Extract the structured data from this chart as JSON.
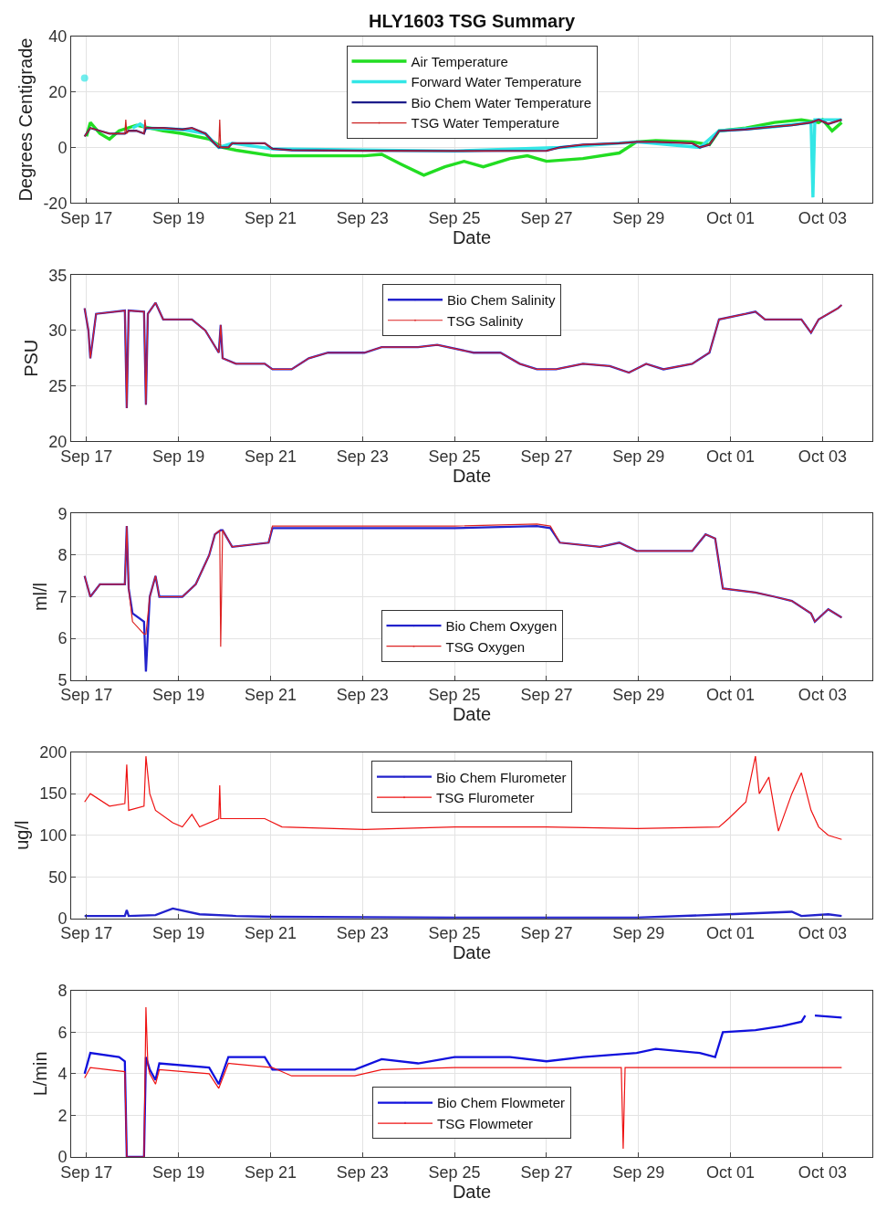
{
  "chart_data": [
    {
      "type": "line",
      "title": "HLY1603 TSG Summary",
      "xlabel": "Date",
      "ylabel": "Degrees Centigrade",
      "xlim": [
        "--09-16T16:00",
        "--10-04T02:00"
      ],
      "xticks": [
        {
          "value": "--09-17",
          "label": "Sep 17"
        },
        {
          "value": "--09-19",
          "label": "Sep 19"
        },
        {
          "value": "--09-21",
          "label": "Sep 21"
        },
        {
          "value": "--09-23",
          "label": "Sep 23"
        },
        {
          "value": "--09-25",
          "label": "Sep 25"
        },
        {
          "value": "--09-27",
          "label": "Sep 27"
        },
        {
          "value": "--09-29",
          "label": "Sep 29"
        },
        {
          "value": "--10-01",
          "label": "Oct 01"
        },
        {
          "value": "--10-03",
          "label": "Oct 03"
        }
      ],
      "ylim": [
        -20,
        40
      ],
      "yticks": [
        -20,
        0,
        20,
        40
      ],
      "grid": true,
      "legend": "top",
      "series": [
        {
          "name": "Air Temperature",
          "color": "#22dd22",
          "x": [
            "--09-17T00:00",
            "--09-17T02:00",
            "--09-17T07:00",
            "--09-17T12:00",
            "--09-17T17:00",
            "--09-18T02:00",
            "--09-18T16:00",
            "--09-19T02:00",
            "--09-19T16:00",
            "--09-19T23:00",
            "--09-20T06:00",
            "--09-21T01:00",
            "--09-22T06:00",
            "--09-23T01:00",
            "--09-23T10:00",
            "--09-23T20:00",
            "--09-24T08:00",
            "--09-24T19:00",
            "--09-25T05:00",
            "--09-25T15:00",
            "--09-26T05:00",
            "--09-26T14:00",
            "--09-27T00:00",
            "--09-27T19:00",
            "--09-28T14:00",
            "--09-28T23:00",
            "--09-29T09:00",
            "--09-30T04:00",
            "--09-30T13:00",
            "--09-30T18:00",
            "--10-01T08:00",
            "--10-01T23:00",
            "--10-02T13:00",
            "--10-02T22:00",
            "--10-03T00:00",
            "--10-03T05:00",
            "--10-03T10:00"
          ],
          "values": [
            4,
            9,
            5,
            3,
            6,
            8,
            6,
            5,
            3,
            0,
            -1,
            -3,
            -3,
            -3,
            -2.5,
            -6,
            -10,
            -7,
            -5,
            -7,
            -4,
            -3,
            -5,
            -4,
            -2,
            2,
            2.5,
            2,
            1,
            6,
            7,
            9,
            10,
            9,
            10,
            6,
            9
          ]
        },
        {
          "name": "Forward Water Temperature",
          "color": "#33e6e6",
          "x": [
            "--09-16T23:00",
            "--09-17T01:00",
            "--09-18T00:00",
            "--09-18T04:00",
            "--09-18T07:00",
            "--09-19T02:00",
            "--09-19T14:00",
            "--09-19T21:00",
            "--09-20T04:00",
            "--09-21T01:00",
            "--09-25T00:00",
            "--09-27T07:00",
            "--09-28T23:00",
            "--09-30T08:00",
            "--09-30T18:00",
            "--10-01T23:00",
            "--10-02T18:00",
            "--10-02T19:00",
            "--10-02T20:00",
            "--10-03T10:00"
          ],
          "values": [
            25,
            null,
            7,
            8.5,
            7,
            6.5,
            5,
            0,
            1.5,
            -0.5,
            -1.3,
            0,
            2,
            0,
            6,
            7.5,
            9,
            -18,
            10,
            10
          ]
        },
        {
          "name": "Bio Chem Water Temperature",
          "color": "#1c1c8a",
          "x": [
            "--09-16T23:00",
            "--09-17T02:00",
            "--09-17T07:00",
            "--09-17T12:00",
            "--09-17T20:00",
            "--09-17T22:00",
            "--09-18T02:00",
            "--09-18T06:00",
            "--09-18T07:00",
            "--09-18T16:00",
            "--09-19T02:00",
            "--09-19T07:00",
            "--09-19T14:00",
            "--09-19T18:00",
            "--09-19T21:00",
            "--09-20T02:00",
            "--09-20T04:00",
            "--09-20T21:00",
            "--09-21T01:00",
            "--09-21T11:00",
            "--09-23T01:00",
            "--09-25T00:00",
            "--09-27T00:00",
            "--09-27T07:00",
            "--09-27T19:00",
            "--09-28T14:00",
            "--09-28T23:00",
            "--09-29T09:00",
            "--09-30T04:00",
            "--09-30T08:00",
            "--09-30T13:00",
            "--09-30T18:00",
            "--10-01T08:00",
            "--10-01T23:00",
            "--10-02T08:00",
            "--10-02T18:00",
            "--10-02T22:00",
            "--10-03T03:00",
            "--10-03T10:00"
          ],
          "values": [
            4,
            7,
            6,
            5,
            5,
            6,
            6,
            5,
            7,
            7,
            6.5,
            7,
            5,
            2,
            0,
            0,
            1.5,
            1.5,
            -0.5,
            -1,
            -1.2,
            -1.3,
            -1.2,
            0,
            1,
            1.5,
            2,
            2,
            1.5,
            0,
            1,
            6,
            6.5,
            7.5,
            8,
            9,
            10,
            8.5,
            10
          ]
        },
        {
          "name": "TSG Water Temperature",
          "color": "#cc2222",
          "x": [
            "--09-16T23:00",
            "--09-17T02:00",
            "--09-17T07:00",
            "--09-17T12:00",
            "--09-17T20:00",
            "--09-17T20:30",
            "--09-17T21:00",
            "--09-17T22:00",
            "--09-18T02:00",
            "--09-18T06:00",
            "--09-18T06:30",
            "--09-18T07:00",
            "--09-18T16:00",
            "--09-19T02:00",
            "--09-19T07:00",
            "--09-19T14:00",
            "--09-19T18:00",
            "--09-19T21:00",
            "--09-19T21:30",
            "--09-19T22:00",
            "--09-20T02:00",
            "--09-20T04:00",
            "--09-20T21:00",
            "--09-21T01:00",
            "--09-21T11:00",
            "--09-23T01:00",
            "--09-25T00:00",
            "--09-27T00:00",
            "--09-27T07:00",
            "--09-27T19:00",
            "--09-28T14:00",
            "--09-28T23:00",
            "--09-29T09:00",
            "--09-30T04:00",
            "--09-30T08:00",
            "--09-30T13:00",
            "--09-30T18:00",
            "--10-01T08:00",
            "--10-01T23:00",
            "--10-02T08:00",
            "--10-02T18:00",
            "--10-02T22:00",
            "--10-03T03:00",
            "--10-03T10:00"
          ],
          "values": [
            4,
            7,
            6,
            5,
            5,
            10,
            5,
            6,
            6,
            5,
            10,
            7,
            7,
            6.5,
            7,
            5,
            2,
            0,
            10,
            0,
            0,
            1.5,
            1.5,
            -0.5,
            -1,
            -1.2,
            -1.3,
            -1.2,
            0,
            1,
            1.5,
            2,
            2,
            1.5,
            0,
            1,
            6,
            6.5,
            7.5,
            8,
            9,
            10,
            8.5,
            10
          ]
        }
      ]
    },
    {
      "type": "line",
      "xlabel": "Date",
      "ylabel": "PSU",
      "xlim": [
        "--09-16T16:00",
        "--10-04T02:00"
      ],
      "xticks": [
        {
          "value": "--09-17",
          "label": "Sep 17"
        },
        {
          "value": "--09-19",
          "label": "Sep 19"
        },
        {
          "value": "--09-21",
          "label": "Sep 21"
        },
        {
          "value": "--09-23",
          "label": "Sep 23"
        },
        {
          "value": "--09-25",
          "label": "Sep 25"
        },
        {
          "value": "--09-27",
          "label": "Sep 27"
        },
        {
          "value": "--09-29",
          "label": "Sep 29"
        },
        {
          "value": "--10-01",
          "label": "Oct 01"
        },
        {
          "value": "--10-03",
          "label": "Oct 03"
        }
      ],
      "ylim": [
        20,
        35
      ],
      "yticks": [
        20,
        25,
        30,
        35
      ],
      "grid": true,
      "legend": "top",
      "series": [
        {
          "name": "Bio Chem Salinity",
          "color": "#2222cc",
          "x": [
            "--09-16T23:00",
            "--09-17T01:00",
            "--09-17T02:00",
            "--09-17T05:00",
            "--09-17T20:00",
            "--09-17T21:00",
            "--09-17T22:00",
            "--09-18T06:00",
            "--09-18T07:00",
            "--09-18T08:00",
            "--09-18T12:00",
            "--09-18T16:00",
            "--09-19T07:00",
            "--09-19T14:00",
            "--09-19T21:00",
            "--09-19T22:00",
            "--09-19T23:00",
            "--09-20T06:00",
            "--09-20T21:00",
            "--09-21T01:00",
            "--09-21T11:00",
            "--09-21T20:00",
            "--09-22T06:00",
            "--09-23T01:00",
            "--09-23T10:00",
            "--09-24T05:00",
            "--09-24T15:00",
            "--09-25T10:00",
            "--09-26T00:00",
            "--09-26T10:00",
            "--09-26T19:00",
            "--09-27T05:00",
            "--09-27T19:00",
            "--09-28T09:00",
            "--09-28T19:00",
            "--09-29T04:00",
            "--09-29T13:00",
            "--09-30T04:00",
            "--09-30T13:00",
            "--09-30T18:00",
            "--10-01T08:00",
            "--10-01T13:00",
            "--10-01T18:00",
            "--10-02T13:00",
            "--10-02T18:00",
            "--10-02T22:00",
            "--10-03T08:00",
            "--10-03T10:00"
          ],
          "values": [
            32,
            30,
            27.5,
            31.5,
            31.8,
            23,
            31.8,
            31.7,
            23.3,
            31.5,
            32.5,
            31,
            31,
            30,
            28,
            30.5,
            27.5,
            27,
            27,
            26.5,
            26.5,
            27.5,
            28,
            28,
            28.5,
            28.5,
            28.7,
            28,
            28,
            27,
            26.5,
            26.5,
            27,
            26.8,
            26.2,
            27,
            26.5,
            27,
            28,
            31,
            31.5,
            31.7,
            31,
            31,
            29.8,
            31,
            32,
            32.3
          ]
        },
        {
          "name": "TSG Salinity",
          "color": "#dd2222",
          "x": [
            "--09-16T23:00",
            "--09-17T01:00",
            "--09-17T02:00",
            "--09-17T05:00",
            "--09-17T20:00",
            "--09-17T21:00",
            "--09-17T22:00",
            "--09-18T06:00",
            "--09-18T07:00",
            "--09-18T08:00",
            "--09-18T12:00",
            "--09-18T16:00",
            "--09-19T07:00",
            "--09-19T14:00",
            "--09-19T21:00",
            "--09-19T22:00",
            "--09-19T23:00",
            "--09-20T06:00",
            "--09-20T21:00",
            "--09-21T01:00",
            "--09-21T11:00",
            "--09-21T20:00",
            "--09-22T06:00",
            "--09-23T01:00",
            "--09-23T10:00",
            "--09-24T05:00",
            "--09-24T15:00",
            "--09-25T10:00",
            "--09-26T00:00",
            "--09-26T10:00",
            "--09-26T19:00",
            "--09-27T05:00",
            "--09-27T19:00",
            "--09-28T09:00",
            "--09-28T19:00",
            "--09-29T04:00",
            "--09-29T13:00",
            "--09-30T04:00",
            "--09-30T13:00",
            "--09-30T18:00",
            "--10-01T08:00",
            "--10-01T13:00",
            "--10-01T18:00",
            "--10-02T13:00",
            "--10-02T18:00",
            "--10-02T22:00",
            "--10-03T08:00",
            "--10-03T10:00"
          ],
          "values": [
            32,
            30,
            27.5,
            31.5,
            31.8,
            23,
            31.8,
            31.7,
            23.3,
            31.5,
            32.5,
            31,
            31,
            30,
            28,
            30.5,
            27.5,
            27,
            27,
            26.5,
            26.5,
            27.5,
            28,
            28,
            28.5,
            28.5,
            28.7,
            28,
            28,
            27,
            26.5,
            26.5,
            27,
            26.8,
            26.2,
            27,
            26.5,
            27,
            28,
            31,
            31.5,
            31.7,
            31,
            31,
            29.8,
            31,
            32,
            32.3
          ]
        }
      ]
    },
    {
      "type": "line",
      "xlabel": "Date",
      "ylabel": "ml/l",
      "xlim": [
        "--09-16T16:00",
        "--10-04T02:00"
      ],
      "xticks": [
        {
          "value": "--09-17",
          "label": "Sep 17"
        },
        {
          "value": "--09-19",
          "label": "Sep 19"
        },
        {
          "value": "--09-21",
          "label": "Sep 21"
        },
        {
          "value": "--09-23",
          "label": "Sep 23"
        },
        {
          "value": "--09-25",
          "label": "Sep 25"
        },
        {
          "value": "--09-27",
          "label": "Sep 27"
        },
        {
          "value": "--09-29",
          "label": "Sep 29"
        },
        {
          "value": "--10-01",
          "label": "Oct 01"
        },
        {
          "value": "--10-03",
          "label": "Oct 03"
        }
      ],
      "ylim": [
        5,
        9
      ],
      "yticks": [
        5,
        6,
        7,
        8,
        9
      ],
      "grid": true,
      "legend": "bottom",
      "series": [
        {
          "name": "Bio Chem Oxygen",
          "color": "#2222cc",
          "x": [
            "--09-16T23:00",
            "--09-17T02:00",
            "--09-17T07:00",
            "--09-17T20:00",
            "--09-17T21:00",
            "--09-17T22:00",
            "--09-18T00:00",
            "--09-18T06:00",
            "--09-18T07:00",
            "--09-18T09:00",
            "--09-18T12:00",
            "--09-18T14:00",
            "--09-19T02:00",
            "--09-19T09:00",
            "--09-19T16:00",
            "--09-19T19:00",
            "--09-19T22:00",
            "--09-19T23:00",
            "--09-20T04:00",
            "--09-20T23:00",
            "--09-21T01:00",
            "--09-23T01:00",
            "--09-25T00:00",
            "--09-26T19:00",
            "--09-27T02:00",
            "--09-27T07:00",
            "--09-28T04:00",
            "--09-28T14:00",
            "--09-28T23:00",
            "--09-30T04:00",
            "--09-30T11:00",
            "--09-30T16:00",
            "--09-30T20:00",
            "--10-01T13:00",
            "--10-01T23:00",
            "--10-02T08:00",
            "--10-02T18:00",
            "--10-02T20:00",
            "--10-03T03:00",
            "--10-03T10:00"
          ],
          "values": [
            7.5,
            7.0,
            7.3,
            7.3,
            8.7,
            7.2,
            6.6,
            6.4,
            5.2,
            7.0,
            7.5,
            7.0,
            7.0,
            7.3,
            8.0,
            8.5,
            8.6,
            8.6,
            8.2,
            8.3,
            8.65,
            8.65,
            8.65,
            8.7,
            8.65,
            8.3,
            8.2,
            8.3,
            8.1,
            8.1,
            8.5,
            8.4,
            7.2,
            7.1,
            7.0,
            6.9,
            6.6,
            6.4,
            6.7,
            6.5
          ]
        },
        {
          "name": "TSG Oxygen",
          "color": "#dd2222",
          "x": [
            "--09-16T23:00",
            "--09-17T02:00",
            "--09-17T07:00",
            "--09-17T20:00",
            "--09-17T21:00",
            "--09-17T22:00",
            "--09-18T00:00",
            "--09-18T06:00",
            "--09-18T07:00",
            "--09-18T09:00",
            "--09-18T12:00",
            "--09-18T14:00",
            "--09-19T02:00",
            "--09-19T09:00",
            "--09-19T16:00",
            "--09-19T19:00",
            "--09-19T21:30",
            "--09-19T22:00",
            "--09-19T23:00",
            "--09-20T04:00",
            "--09-20T23:00",
            "--09-21T01:00",
            "--09-23T01:00",
            "--09-25T00:00",
            "--09-26T19:00",
            "--09-27T02:00",
            "--09-27T07:00",
            "--09-28T04:00",
            "--09-28T14:00",
            "--09-28T23:00",
            "--09-30T04:00",
            "--09-30T11:00",
            "--09-30T16:00",
            "--09-30T20:00",
            "--10-01T13:00",
            "--10-01T23:00",
            "--10-02T08:00",
            "--10-02T18:00",
            "--10-02T20:00",
            "--10-03T03:00",
            "--10-03T10:00"
          ],
          "values": [
            7.5,
            7.0,
            7.3,
            7.3,
            8.7,
            7.2,
            6.4,
            6.1,
            6.1,
            7.0,
            7.5,
            7.0,
            7.0,
            7.3,
            8.0,
            8.5,
            8.6,
            5.8,
            8.6,
            8.2,
            8.3,
            8.7,
            8.7,
            8.7,
            8.75,
            8.7,
            8.3,
            8.2,
            8.3,
            8.1,
            8.1,
            8.5,
            8.4,
            7.2,
            7.1,
            7.0,
            6.9,
            6.6,
            6.4,
            6.7,
            6.5
          ]
        }
      ]
    },
    {
      "type": "line",
      "xlabel": "Date",
      "ylabel": "ug/l",
      "xlim": [
        "--09-16T16:00",
        "--10-04T02:00"
      ],
      "xticks": [
        {
          "value": "--09-17",
          "label": "Sep 17"
        },
        {
          "value": "--09-19",
          "label": "Sep 19"
        },
        {
          "value": "--09-21",
          "label": "Sep 21"
        },
        {
          "value": "--09-23",
          "label": "Sep 23"
        },
        {
          "value": "--09-25",
          "label": "Sep 25"
        },
        {
          "value": "--09-27",
          "label": "Sep 27"
        },
        {
          "value": "--09-29",
          "label": "Sep 29"
        },
        {
          "value": "--10-01",
          "label": "Oct 01"
        },
        {
          "value": "--10-03",
          "label": "Oct 03"
        }
      ],
      "ylim": [
        0,
        200
      ],
      "yticks": [
        0,
        50,
        100,
        150,
        200
      ],
      "grid": true,
      "legend": "top",
      "series": [
        {
          "name": "Bio Chem Flurometer",
          "color": "#2222cc",
          "x": [
            "--09-16T23:00",
            "--09-17T20:00",
            "--09-17T21:00",
            "--09-17T22:00",
            "--09-18T12:00",
            "--09-18T21:00",
            "--09-19T11:00",
            "--09-20T06:00",
            "--09-21T01:00",
            "--09-25T00:00",
            "--09-28T23:00",
            "--09-30T23:00",
            "--10-02T08:00",
            "--10-02T13:00",
            "--10-03T03:00",
            "--10-03T10:00"
          ],
          "values": [
            3,
            3,
            10,
            3,
            4,
            12,
            5,
            3,
            2,
            1,
            1,
            5,
            8,
            3,
            5,
            3
          ]
        },
        {
          "name": "TSG Flurometer",
          "color": "#ee1111",
          "x": [
            "--09-16T23:00",
            "--09-17T02:00",
            "--09-17T12:00",
            "--09-17T20:00",
            "--09-17T21:00",
            "--09-17T22:00",
            "--09-18T06:00",
            "--09-18T07:00",
            "--09-18T09:00",
            "--09-18T12:00",
            "--09-18T21:00",
            "--09-19T02:00",
            "--09-19T07:00",
            "--09-19T11:00",
            "--09-19T21:00",
            "--09-19T21:30",
            "--09-19T22:00",
            "--09-20T02:00",
            "--09-20T21:00",
            "--09-21T06:00",
            "--09-23T01:00",
            "--09-25T00:00",
            "--09-27T00:00",
            "--09-28T23:00",
            "--09-30T18:00",
            "--09-30T23:00",
            "--10-01T08:00",
            "--10-01T13:00",
            "--10-01T15:00",
            "--10-01T20:00",
            "--10-01T23:00",
            "--10-02T01:00",
            "--10-02T08:00",
            "--10-02T13:00",
            "--10-02T18:00",
            "--10-02T22:00",
            "--10-03T03:00",
            "--10-03T10:00"
          ],
          "values": [
            140,
            150,
            135,
            138,
            185,
            130,
            135,
            195,
            150,
            130,
            115,
            110,
            125,
            110,
            120,
            160,
            120,
            120,
            120,
            110,
            107,
            110,
            110,
            108,
            110,
            120,
            140,
            195,
            150,
            170,
            130,
            105,
            150,
            175,
            130,
            110,
            100,
            95
          ]
        }
      ]
    },
    {
      "type": "line",
      "xlabel": "Date",
      "ylabel": "L/min",
      "xlim": [
        "--09-16T16:00",
        "--10-04T02:00"
      ],
      "xticks": [
        {
          "value": "--09-17",
          "label": "Sep 17"
        },
        {
          "value": "--09-19",
          "label": "Sep 19"
        },
        {
          "value": "--09-21",
          "label": "Sep 21"
        },
        {
          "value": "--09-23",
          "label": "Sep 23"
        },
        {
          "value": "--09-25",
          "label": "Sep 25"
        },
        {
          "value": "--09-27",
          "label": "Sep 27"
        },
        {
          "value": "--09-29",
          "label": "Sep 29"
        },
        {
          "value": "--10-01",
          "label": "Oct 01"
        },
        {
          "value": "--10-03",
          "label": "Oct 03"
        }
      ],
      "ylim": [
        0,
        8
      ],
      "yticks": [
        0,
        2,
        4,
        6,
        8
      ],
      "grid": true,
      "legend": "bottom",
      "series": [
        {
          "name": "Bio Chem Flowmeter",
          "color": "#1111dd",
          "x": [
            "--09-16T23:00",
            "--09-17T02:00",
            "--09-17T17:00",
            "--09-17T20:00",
            "--09-17T21:00",
            "--09-18T06:00",
            "--09-18T07:00",
            "--09-18T09:00",
            "--09-18T12:00",
            "--09-18T14:00",
            "--09-19T16:00",
            "--09-19T21:00",
            "--09-20T02:00",
            "--09-20T21:00",
            "--09-21T01:00",
            "--09-22T20:00",
            "--09-23T10:00",
            "--09-24T05:00",
            "--09-25T00:00",
            "--09-26T05:00",
            "--09-27T00:00",
            "--09-27T19:00",
            "--09-28T23:00",
            "--09-29T09:00",
            "--09-30T08:00",
            "--09-30T16:00",
            "--09-30T20:00",
            "--10-01T13:00",
            "--10-02T03:00",
            "--10-02T13:00",
            "--10-02T15:00",
            "--10-02T19:00",
            "--10-02T20:00",
            "--10-03T10:00"
          ],
          "values": [
            4,
            5,
            4.8,
            4.6,
            0,
            0,
            4.8,
            4.2,
            3.7,
            4.5,
            4.3,
            3.5,
            4.8,
            4.8,
            4.2,
            4.2,
            4.7,
            4.5,
            4.8,
            4.8,
            4.6,
            4.8,
            5.0,
            5.2,
            5.0,
            4.8,
            6.0,
            6.1,
            6.3,
            6.5,
            6.8,
            null,
            6.8,
            6.7
          ]
        },
        {
          "name": "TSG Flowmeter",
          "color": "#ee1111",
          "x": [
            "--09-16T23:00",
            "--09-17T02:00",
            "--09-17T20:00",
            "--09-17T21:00",
            "--09-18T06:00",
            "--09-18T07:00",
            "--09-18T08:00",
            "--09-18T09:00",
            "--09-18T12:00",
            "--09-18T14:00",
            "--09-19T16:00",
            "--09-19T21:00",
            "--09-20T02:00",
            "--09-21T01:00",
            "--09-21T11:00",
            "--09-22T20:00",
            "--09-23T10:00",
            "--09-25T00:00",
            "--09-26T00:00",
            "--09-28T15:00",
            "--09-28T16:00",
            "--09-28T17:00",
            "--10-03T10:00"
          ],
          "values": [
            3.8,
            4.3,
            4.1,
            0,
            0,
            7.2,
            4.4,
            4.0,
            3.5,
            4.2,
            4.0,
            3.3,
            4.5,
            4.3,
            3.9,
            3.9,
            4.2,
            4.3,
            4.3,
            4.3,
            0.4,
            4.3,
            4.3
          ]
        }
      ]
    }
  ]
}
